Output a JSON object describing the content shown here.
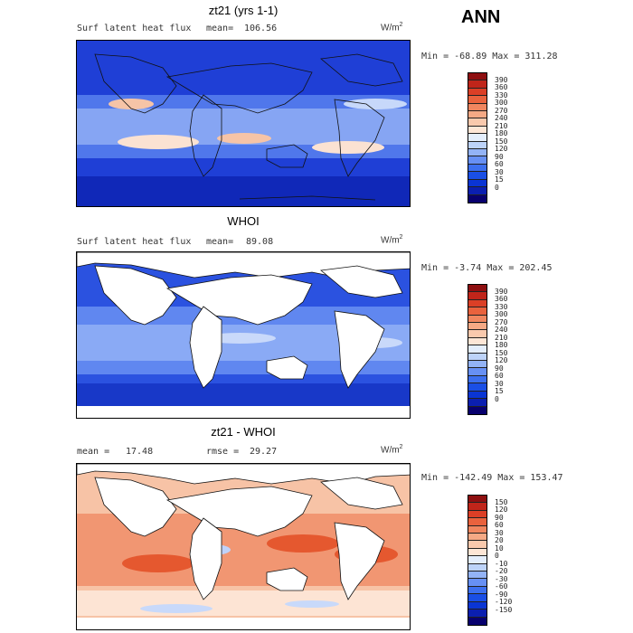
{
  "season": "ANN",
  "units_text": "W/m",
  "units_sup": "2",
  "palettes": {
    "abs": [
      "#08006e",
      "#0b1fb0",
      "#0a35d4",
      "#1a4fe6",
      "#3c6fef",
      "#6790f4",
      "#93b3f6",
      "#bdd3f9",
      "#e4eefc",
      "#fde6d6",
      "#f9c9ad",
      "#f5a985",
      "#f0865f",
      "#e9623d",
      "#db3f26",
      "#c0251a",
      "#8e0f10"
    ],
    "diff": [
      "#08006e",
      "#0b1fb0",
      "#0a35d4",
      "#1a4fe6",
      "#3c6fef",
      "#6790f4",
      "#93b3f6",
      "#bdd3f9",
      "#e4eefc",
      "#fde6d6",
      "#f9c9ad",
      "#f5a985",
      "#f0865f",
      "#e9623d",
      "#db3f26",
      "#c0251a",
      "#8e0f10"
    ]
  },
  "panels": [
    {
      "title": "zt21 (yrs 1-1)",
      "left_label": "Surf latent heat flux",
      "stat_label": "mean=",
      "stat_value": "106.56",
      "minmax": "Min = -68.89 Max = 311.28",
      "ocean_color": "#2a58e8",
      "land_color": "#2140d8",
      "colorbar_ticks": [
        "390",
        "360",
        "330",
        "300",
        "270",
        "240",
        "210",
        "180",
        "150",
        "120",
        "90",
        "60",
        "30",
        "15",
        "0"
      ]
    },
    {
      "title": "WHOI",
      "left_label": "Surf latent heat flux",
      "stat_label": "mean=",
      "stat_value": "89.08",
      "minmax": "Min =  -3.74 Max = 202.45",
      "ocean_color": "#3563ea",
      "land_color": "#ffffff",
      "colorbar_ticks": [
        "390",
        "360",
        "330",
        "300",
        "270",
        "240",
        "210",
        "180",
        "150",
        "120",
        "90",
        "60",
        "30",
        "15",
        "0"
      ]
    },
    {
      "title": "zt21 - WHOI",
      "left_label": "mean =",
      "left_value": "17.48",
      "stat_label": "rmse =",
      "stat_value": "29.27",
      "minmax": "Min = -142.49 Max = 153.47",
      "ocean_color": "#f4b08f",
      "land_color": "#ffffff",
      "colorbar_ticks": [
        "150",
        "120",
        "90",
        "60",
        "30",
        "20",
        "10",
        "0",
        "-10",
        "-20",
        "-30",
        "-60",
        "-90",
        "-120",
        "-150"
      ]
    }
  ]
}
